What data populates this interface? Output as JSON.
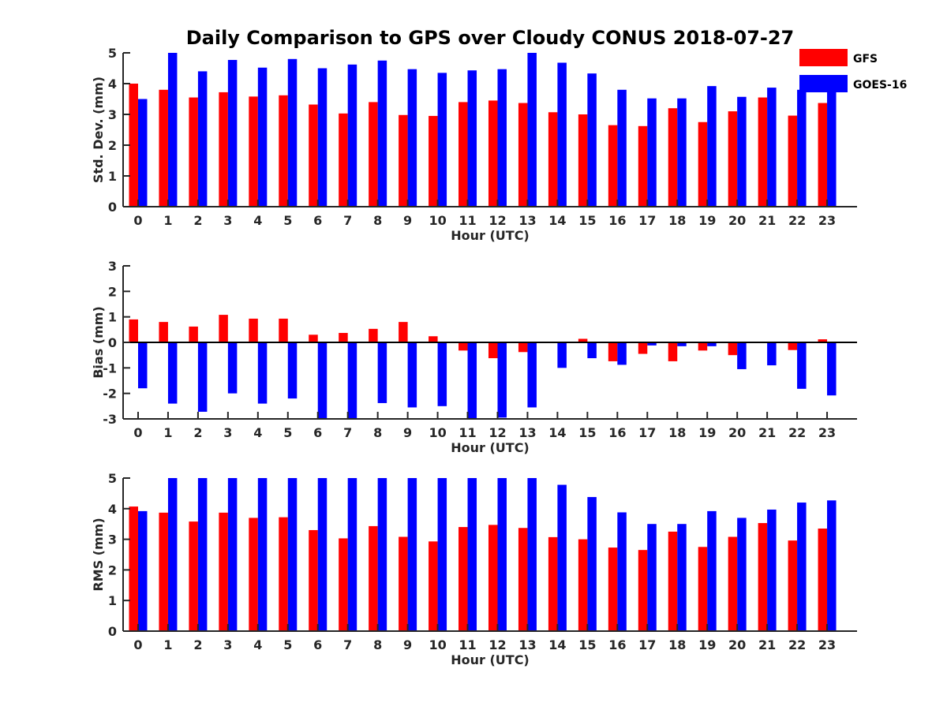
{
  "title": "Daily Comparison to GPS over Cloudy CONUS 2018-07-27",
  "colors": {
    "GFS": "#ff0000",
    "GOES-16": "#0000ff"
  },
  "chart_data": [
    {
      "type": "bar",
      "title": "Daily Comparison to GPS over Cloudy CONUS 2018-07-27",
      "xlabel": "Hour (UTC)",
      "ylabel": "Std. Dev. (mm)",
      "ylim": [
        0,
        5
      ],
      "yticks": [
        0,
        1,
        2,
        3,
        4,
        5
      ],
      "categories": [
        "0",
        "1",
        "2",
        "3",
        "4",
        "5",
        "6",
        "7",
        "8",
        "9",
        "10",
        "11",
        "12",
        "13",
        "14",
        "15",
        "16",
        "17",
        "18",
        "19",
        "20",
        "21",
        "22",
        "23"
      ],
      "legend": "top-right",
      "series": [
        {
          "name": "GFS",
          "values": [
            4.0,
            3.8,
            3.55,
            3.72,
            3.58,
            3.62,
            3.32,
            3.03,
            3.4,
            2.98,
            2.95,
            3.4,
            3.45,
            3.37,
            3.07,
            3.0,
            2.65,
            2.62,
            3.2,
            2.75,
            3.1,
            3.55,
            2.96,
            3.37
          ]
        },
        {
          "name": "GOES-16",
          "values": [
            3.5,
            5.0,
            4.4,
            4.77,
            4.52,
            4.8,
            4.5,
            4.62,
            4.75,
            4.47,
            4.35,
            4.43,
            4.47,
            5.0,
            4.68,
            4.33,
            3.8,
            3.52,
            3.52,
            3.92,
            3.57,
            3.87,
            3.8,
            3.8
          ]
        }
      ]
    },
    {
      "type": "bar",
      "xlabel": "Hour (UTC)",
      "ylabel": "Bias (mm)",
      "ylim": [
        -3,
        3
      ],
      "yticks": [
        -3,
        -2,
        -1,
        0,
        1,
        2,
        3
      ],
      "categories": [
        "0",
        "1",
        "2",
        "3",
        "4",
        "5",
        "6",
        "7",
        "8",
        "9",
        "10",
        "11",
        "12",
        "13",
        "14",
        "15",
        "16",
        "17",
        "18",
        "19",
        "20",
        "21",
        "22",
        "23"
      ],
      "series": [
        {
          "name": "GFS",
          "values": [
            0.9,
            0.8,
            0.62,
            1.08,
            0.93,
            0.93,
            0.3,
            0.37,
            0.53,
            0.8,
            0.24,
            -0.32,
            -0.62,
            -0.38,
            0.0,
            0.14,
            -0.74,
            -0.45,
            -0.74,
            -0.32,
            -0.5,
            0.0,
            -0.3,
            0.12
          ]
        },
        {
          "name": "GOES-16",
          "values": [
            -1.8,
            -2.4,
            -2.72,
            -2.0,
            -2.4,
            -2.2,
            -3.0,
            -3.0,
            -2.38,
            -2.55,
            -2.5,
            -3.0,
            -2.95,
            -2.55,
            -1.0,
            -0.62,
            -0.88,
            -0.12,
            -0.15,
            -0.15,
            -1.05,
            -0.9,
            -1.82,
            -2.08
          ]
        }
      ]
    },
    {
      "type": "bar",
      "xlabel": "Hour (UTC)",
      "ylabel": "RMS (mm)",
      "ylim": [
        0,
        5
      ],
      "yticks": [
        0,
        1,
        2,
        3,
        4,
        5
      ],
      "categories": [
        "0",
        "1",
        "2",
        "3",
        "4",
        "5",
        "6",
        "7",
        "8",
        "9",
        "10",
        "11",
        "12",
        "13",
        "14",
        "15",
        "16",
        "17",
        "18",
        "19",
        "20",
        "21",
        "22",
        "23"
      ],
      "series": [
        {
          "name": "GFS",
          "values": [
            4.07,
            3.87,
            3.58,
            3.87,
            3.7,
            3.72,
            3.3,
            3.03,
            3.43,
            3.08,
            2.93,
            3.4,
            3.47,
            3.37,
            3.07,
            3.0,
            2.73,
            2.65,
            3.25,
            2.75,
            3.08,
            3.53,
            2.96,
            3.35
          ]
        },
        {
          "name": "GOES-16",
          "values": [
            3.92,
            5.0,
            5.0,
            5.0,
            5.0,
            5.0,
            5.0,
            5.0,
            5.0,
            5.0,
            5.0,
            5.0,
            5.0,
            5.0,
            4.78,
            4.38,
            3.88,
            3.5,
            3.5,
            3.92,
            3.7,
            3.97,
            4.2,
            4.27
          ]
        }
      ]
    }
  ]
}
